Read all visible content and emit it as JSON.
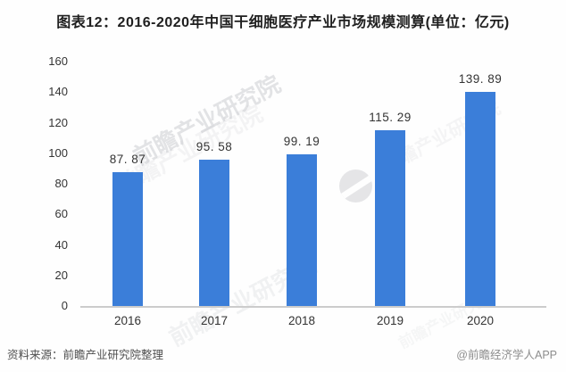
{
  "page": {
    "title": "图表12：2016-2020年中国干细胞医疗产业市场规模测算(单位：亿元)",
    "source_left": "资料来源：前瞻产业研究院整理",
    "source_right": "@前瞻经济学人APP"
  },
  "watermark": {
    "text": "前瞻产业研究院",
    "logo": "qianzhan-logo"
  },
  "colors": {
    "background": "#fefefe",
    "bar": "#3b7ed9",
    "title_text": "#1f1f1f",
    "axis_text": "#333333",
    "axis_line": "#cccccc",
    "source_text": "#4e4e4e",
    "credit_text": "#8d8d8d",
    "watermark": "#bdbec4"
  },
  "chart_data": {
    "type": "bar",
    "title": "图表12：2016-2020年中国干细胞医疗产业市场规模测算(单位：亿元)",
    "unit": "亿元",
    "categories": [
      "2016",
      "2017",
      "2018",
      "2019",
      "2020"
    ],
    "values": [
      87.87,
      95.58,
      99.19,
      115.29,
      139.89
    ],
    "value_labels": [
      "87. 87",
      "95. 58",
      "99. 19",
      "115. 29",
      "139. 89"
    ],
    "xlabel": "",
    "ylabel": "",
    "ylim": [
      0,
      160
    ],
    "y_ticks": [
      0,
      20,
      40,
      60,
      80,
      100,
      120,
      140,
      160
    ],
    "grid": false,
    "legend": false
  }
}
